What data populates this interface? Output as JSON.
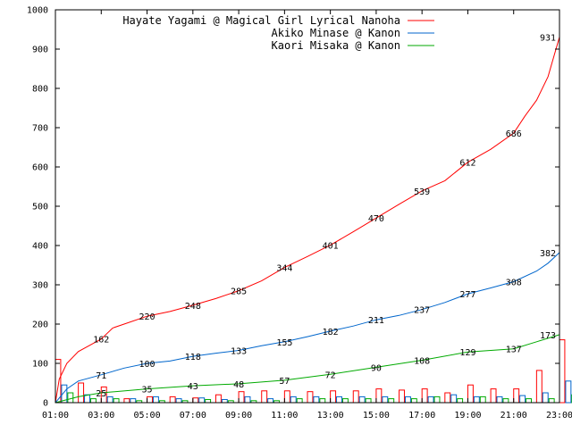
{
  "chart_data": {
    "type": "line",
    "title": "",
    "xlabel": "",
    "ylabel": "",
    "ylim": [
      0,
      1000
    ],
    "xlim": [
      "01:00",
      "23:00"
    ],
    "grid": false,
    "legend": "top-right",
    "x_ticks": [
      "01:00",
      "03:00",
      "05:00",
      "07:00",
      "09:00",
      "11:00",
      "13:00",
      "15:00",
      "17:00",
      "19:00",
      "21:00",
      "23:00"
    ],
    "y_ticks": [
      0,
      100,
      200,
      300,
      400,
      500,
      600,
      700,
      800,
      900,
      1000
    ],
    "series": [
      {
        "name": "Hayate Yagami @ Magical Girl Lyrical Nanoha",
        "color": "#ff0000",
        "points": [
          [
            "01:00",
            0
          ],
          [
            "01:10",
            60
          ],
          [
            "01:30",
            100
          ],
          [
            "02:00",
            130
          ],
          [
            "03:00",
            162
          ],
          [
            "03:30",
            190
          ],
          [
            "04:00",
            200
          ],
          [
            "05:00",
            220
          ],
          [
            "06:00",
            232
          ],
          [
            "07:00",
            248
          ],
          [
            "08:00",
            265
          ],
          [
            "09:00",
            285
          ],
          [
            "10:00",
            310
          ],
          [
            "11:00",
            344
          ],
          [
            "12:00",
            372
          ],
          [
            "13:00",
            401
          ],
          [
            "14:00",
            435
          ],
          [
            "15:00",
            470
          ],
          [
            "16:00",
            505
          ],
          [
            "17:00",
            539
          ],
          [
            "18:00",
            565
          ],
          [
            "19:00",
            612
          ],
          [
            "20:00",
            645
          ],
          [
            "21:00",
            686
          ],
          [
            "21:30",
            730
          ],
          [
            "22:00",
            770
          ],
          [
            "22:30",
            830
          ],
          [
            "23:00",
            931
          ]
        ],
        "labels": [
          [
            "03:00",
            162
          ],
          [
            "05:00",
            220
          ],
          [
            "07:00",
            248
          ],
          [
            "09:00",
            285
          ],
          [
            "11:00",
            344
          ],
          [
            "13:00",
            401
          ],
          [
            "15:00",
            470
          ],
          [
            "17:00",
            539
          ],
          [
            "19:00",
            612
          ],
          [
            "21:00",
            686
          ],
          [
            "23:00",
            931
          ]
        ]
      },
      {
        "name": "Akiko Minase @ Kanon",
        "color": "#0066cc",
        "points": [
          [
            "01:00",
            0
          ],
          [
            "01:30",
            35
          ],
          [
            "02:00",
            55
          ],
          [
            "03:00",
            71
          ],
          [
            "04:00",
            88
          ],
          [
            "05:00",
            100
          ],
          [
            "06:00",
            106
          ],
          [
            "07:00",
            118
          ],
          [
            "08:00",
            126
          ],
          [
            "09:00",
            133
          ],
          [
            "10:00",
            145
          ],
          [
            "11:00",
            155
          ],
          [
            "12:00",
            168
          ],
          [
            "13:00",
            182
          ],
          [
            "14:00",
            195
          ],
          [
            "15:00",
            211
          ],
          [
            "16:00",
            222
          ],
          [
            "17:00",
            237
          ],
          [
            "18:00",
            255
          ],
          [
            "19:00",
            277
          ],
          [
            "20:00",
            292
          ],
          [
            "21:00",
            308
          ],
          [
            "22:00",
            335
          ],
          [
            "22:30",
            355
          ],
          [
            "23:00",
            382
          ]
        ],
        "labels": [
          [
            "03:00",
            71
          ],
          [
            "05:00",
            100
          ],
          [
            "07:00",
            118
          ],
          [
            "09:00",
            133
          ],
          [
            "11:00",
            155
          ],
          [
            "13:00",
            182
          ],
          [
            "15:00",
            211
          ],
          [
            "17:00",
            237
          ],
          [
            "19:00",
            277
          ],
          [
            "21:00",
            308
          ],
          [
            "23:00",
            382
          ]
        ]
      },
      {
        "name": "Kaori Misaka @ Kanon",
        "color": "#00aa00",
        "points": [
          [
            "01:00",
            0
          ],
          [
            "02:00",
            15
          ],
          [
            "03:00",
            25
          ],
          [
            "05:00",
            35
          ],
          [
            "07:00",
            43
          ],
          [
            "09:00",
            48
          ],
          [
            "11:00",
            57
          ],
          [
            "13:00",
            72
          ],
          [
            "15:00",
            90
          ],
          [
            "17:00",
            108
          ],
          [
            "19:00",
            129
          ],
          [
            "21:00",
            137
          ],
          [
            "22:00",
            155
          ],
          [
            "23:00",
            173
          ]
        ],
        "labels": [
          [
            "03:00",
            25
          ],
          [
            "05:00",
            35
          ],
          [
            "07:00",
            43
          ],
          [
            "09:00",
            48
          ],
          [
            "11:00",
            57
          ],
          [
            "13:00",
            72
          ],
          [
            "15:00",
            90
          ],
          [
            "17:00",
            108
          ],
          [
            "19:00",
            129
          ],
          [
            "21:00",
            137
          ],
          [
            "23:00",
            173
          ]
        ]
      }
    ],
    "hourly_bars": {
      "hours": [
        "01:00",
        "02:00",
        "03:00",
        "04:00",
        "05:00",
        "06:00",
        "07:00",
        "08:00",
        "09:00",
        "10:00",
        "11:00",
        "12:00",
        "13:00",
        "14:00",
        "15:00",
        "16:00",
        "17:00",
        "18:00",
        "19:00",
        "20:00",
        "21:00",
        "22:00",
        "23:00"
      ],
      "Hayate Yagami @ Magical Girl Lyrical Nanoha": [
        110,
        50,
        40,
        10,
        15,
        15,
        12,
        20,
        28,
        30,
        30,
        28,
        30,
        30,
        35,
        32,
        35,
        25,
        45,
        35,
        35,
        82,
        160
      ],
      "Akiko Minase @ Kanon": [
        45,
        20,
        15,
        10,
        15,
        10,
        12,
        8,
        15,
        10,
        15,
        15,
        15,
        15,
        15,
        15,
        15,
        20,
        15,
        15,
        18,
        25,
        55
      ],
      "Kaori Misaka @ Kanon": [
        25,
        10,
        10,
        5,
        5,
        5,
        8,
        5,
        5,
        5,
        10,
        10,
        10,
        10,
        10,
        10,
        15,
        10,
        15,
        10,
        10,
        10,
        20
      ]
    }
  }
}
